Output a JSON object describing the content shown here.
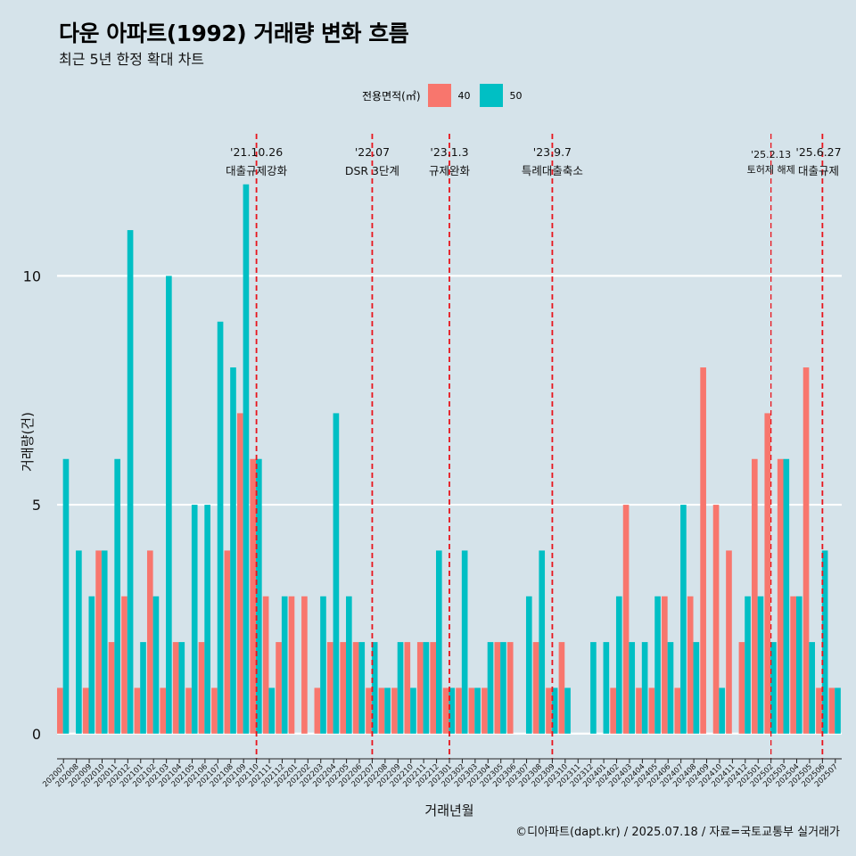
{
  "title": "다운 아파트(1992) 거래량 변화 흐름",
  "subtitle": "최근 5년 한정 확대 차트",
  "caption": "©디아파트(dapt.kr) / 2025.07.18 / 자료=국토교통부 실거래가",
  "legend": {
    "title": "전용면적(㎡)",
    "items": [
      {
        "label": "40",
        "color": "#f8766d"
      },
      {
        "label": "50",
        "color": "#00bfc4"
      }
    ]
  },
  "colors": {
    "background": "#d5e3ea",
    "grid": "#ffffff",
    "event_line": "#e8141c"
  },
  "chart_data": {
    "type": "bar",
    "title": "다운 아파트(1992) 거래량 변화 흐름",
    "xlabel": "거래년월",
    "ylabel": "거래량(건)",
    "ylim": [
      -0.55,
      13.3
    ],
    "yticks": [
      0,
      5,
      10
    ],
    "categories": [
      "202007",
      "202008",
      "202009",
      "202010",
      "202011",
      "202012",
      "202101",
      "202102",
      "202103",
      "202104",
      "202105",
      "202106",
      "202107",
      "202108",
      "202109",
      "202110",
      "202111",
      "202112",
      "202201",
      "202202",
      "202203",
      "202204",
      "202205",
      "202206",
      "202207",
      "202208",
      "202209",
      "202210",
      "202211",
      "202212",
      "202301",
      "202302",
      "202303",
      "202304",
      "202305",
      "202306",
      "202307",
      "202308",
      "202309",
      "202310",
      "202311",
      "202312",
      "202401",
      "202402",
      "202403",
      "202404",
      "202405",
      "202406",
      "202407",
      "202408",
      "202409",
      "202410",
      "202411",
      "202412",
      "202501",
      "202502",
      "202503",
      "202504",
      "202505",
      "202506",
      "202507"
    ],
    "series": [
      {
        "name": "40",
        "color": "#f8766d",
        "values": [
          1,
          0,
          1,
          4,
          2,
          3,
          1,
          4,
          1,
          2,
          1,
          2,
          1,
          4,
          7,
          6,
          3,
          2,
          3,
          3,
          1,
          2,
          2,
          2,
          1,
          1,
          1,
          2,
          2,
          2,
          1,
          1,
          1,
          1,
          2,
          2,
          0,
          2,
          1,
          2,
          0,
          0,
          0,
          1,
          5,
          1,
          1,
          3,
          1,
          3,
          8,
          5,
          4,
          2,
          6,
          7,
          6,
          3,
          8,
          1,
          1
        ]
      },
      {
        "name": "50",
        "color": "#00bfc4",
        "values": [
          6,
          4,
          3,
          4,
          6,
          11,
          2,
          3,
          10,
          2,
          5,
          5,
          9,
          8,
          12,
          6,
          1,
          3,
          0,
          0,
          3,
          7,
          3,
          2,
          2,
          1,
          2,
          1,
          2,
          4,
          1,
          4,
          1,
          2,
          2,
          0,
          3,
          4,
          1,
          1,
          0,
          2,
          2,
          3,
          2,
          2,
          3,
          2,
          5,
          2,
          0,
          1,
          0,
          3,
          3,
          2,
          6,
          3,
          2,
          4,
          1
        ]
      }
    ],
    "events": [
      {
        "date": "'21.10.26",
        "label": "대출규제강화",
        "at": "202110"
      },
      {
        "date": "'22.07",
        "label": "DSR 3단계",
        "at": "202207"
      },
      {
        "date": "'23.1.3",
        "label": "규제완화",
        "at": "202301"
      },
      {
        "date": "'23.9.7",
        "label": "특례대출축소",
        "at": "202309"
      },
      {
        "date": "'25.2.13",
        "label": "토허제 해제",
        "at": "202502"
      },
      {
        "date": "'25.6.27",
        "label": "대출규제",
        "at": "202506"
      }
    ]
  }
}
